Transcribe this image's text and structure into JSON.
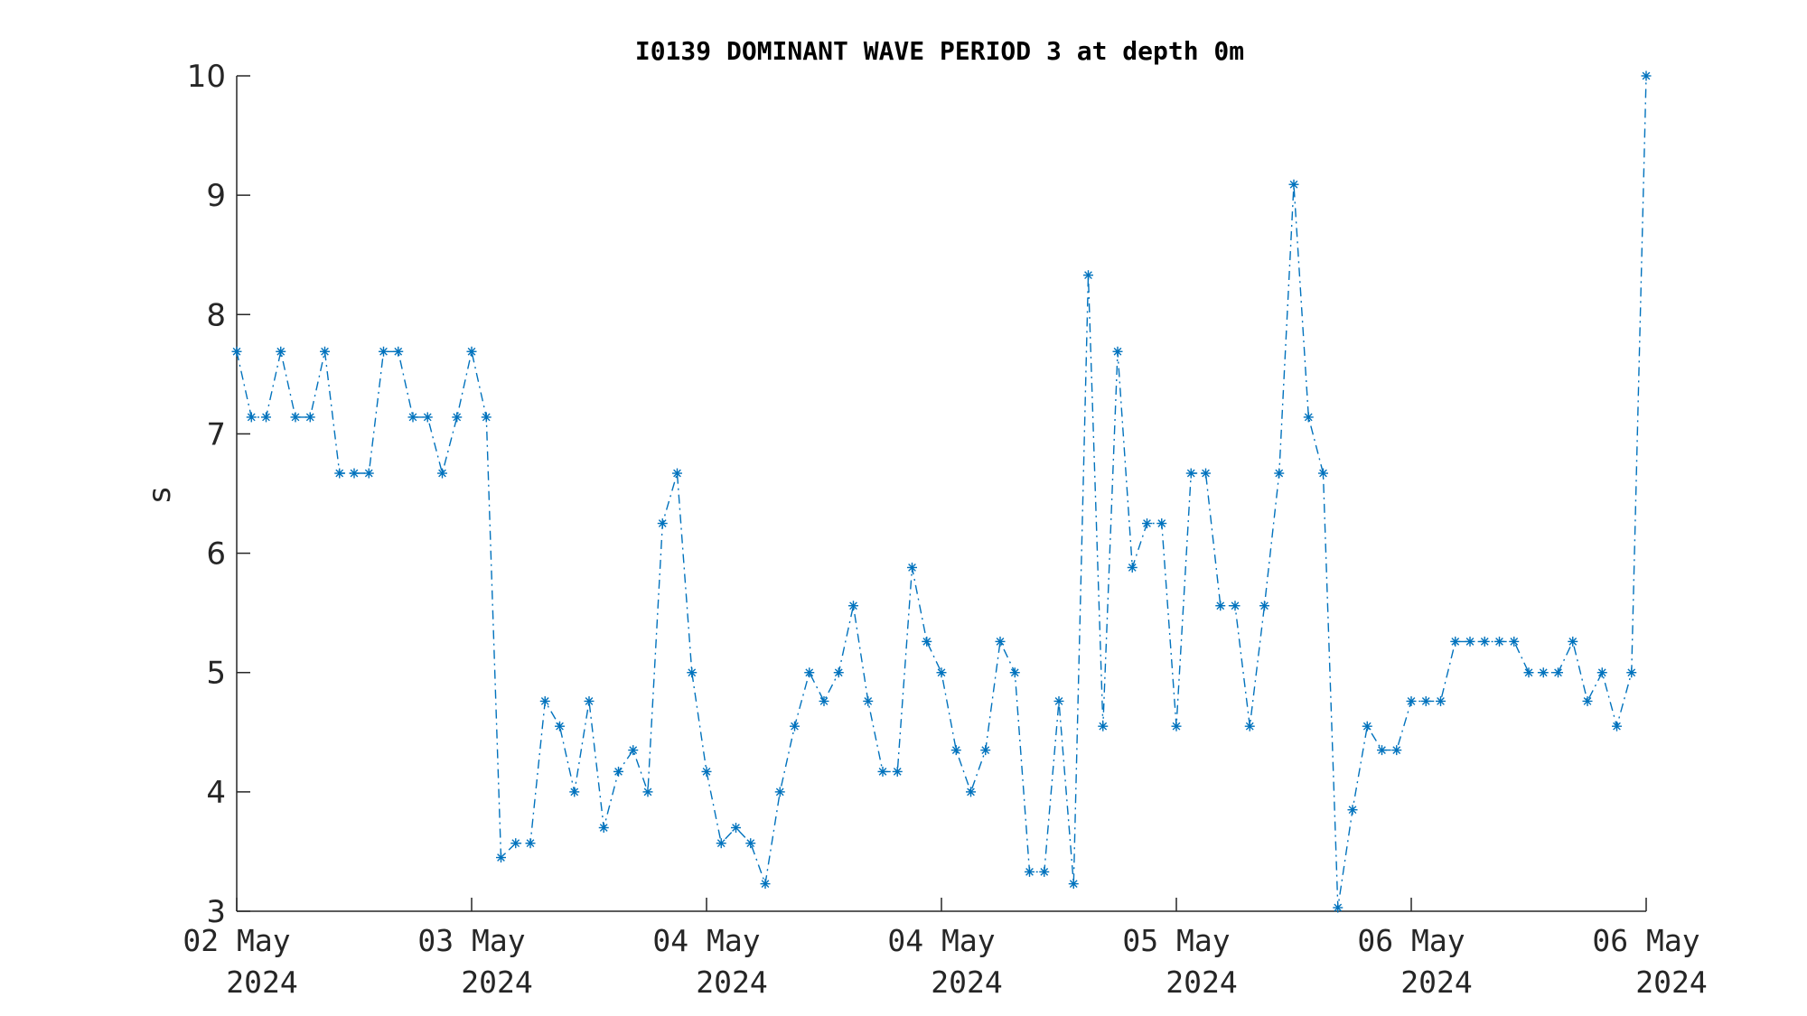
{
  "chart_data": {
    "type": "line",
    "title": "I0139 DOMINANT WAVE PERIOD 3 at depth 0m",
    "ylabel": "s",
    "xlabel": "",
    "ylim": [
      3,
      10
    ],
    "yticks": [
      3,
      4,
      5,
      6,
      7,
      8,
      9,
      10
    ],
    "xticks": [
      {
        "line1": "02 May",
        "line2": "2024"
      },
      {
        "line1": "03 May",
        "line2": "2024"
      },
      {
        "line1": "04 May",
        "line2": "2024"
      },
      {
        "line1": "04 May",
        "line2": "2024"
      },
      {
        "line1": "05 May",
        "line2": "2024"
      },
      {
        "line1": "06 May",
        "line2": "2024"
      },
      {
        "line1": "06 May",
        "line2": "2024"
      }
    ],
    "grid": false,
    "line_style": "dash-dot",
    "marker": "asterisk",
    "color": "#0072BD",
    "series": [
      {
        "values": [
          7.69,
          7.14,
          7.14,
          7.69,
          7.14,
          7.14,
          7.69,
          6.67,
          6.67,
          6.67,
          7.69,
          7.69,
          7.14,
          7.14,
          6.67,
          7.14,
          7.69,
          7.14,
          3.45,
          3.57,
          3.57,
          4.76,
          4.55,
          4.0,
          4.76,
          3.7,
          4.17,
          4.35,
          4.0,
          6.25,
          6.67,
          5.0,
          4.17,
          3.57,
          3.7,
          3.57,
          3.23,
          4.0,
          4.55,
          5.0,
          4.76,
          5.0,
          5.56,
          4.76,
          4.17,
          4.17,
          5.88,
          5.26,
          5.0,
          4.35,
          4.0,
          4.35,
          5.26,
          5.0,
          3.33,
          3.33,
          4.76,
          3.23,
          8.33,
          4.55,
          7.69,
          5.88,
          6.25,
          6.25,
          4.55,
          6.67,
          6.67,
          5.56,
          5.56,
          4.55,
          5.56,
          6.67,
          9.09,
          7.14,
          6.67,
          3.03,
          3.85,
          4.55,
          4.35,
          4.35,
          4.76,
          4.76,
          4.76,
          5.26,
          5.26,
          5.26,
          5.26,
          5.26,
          5.0,
          5.0,
          5.0,
          5.26,
          4.76,
          5.0,
          4.55,
          5.0,
          10.0
        ]
      }
    ]
  }
}
